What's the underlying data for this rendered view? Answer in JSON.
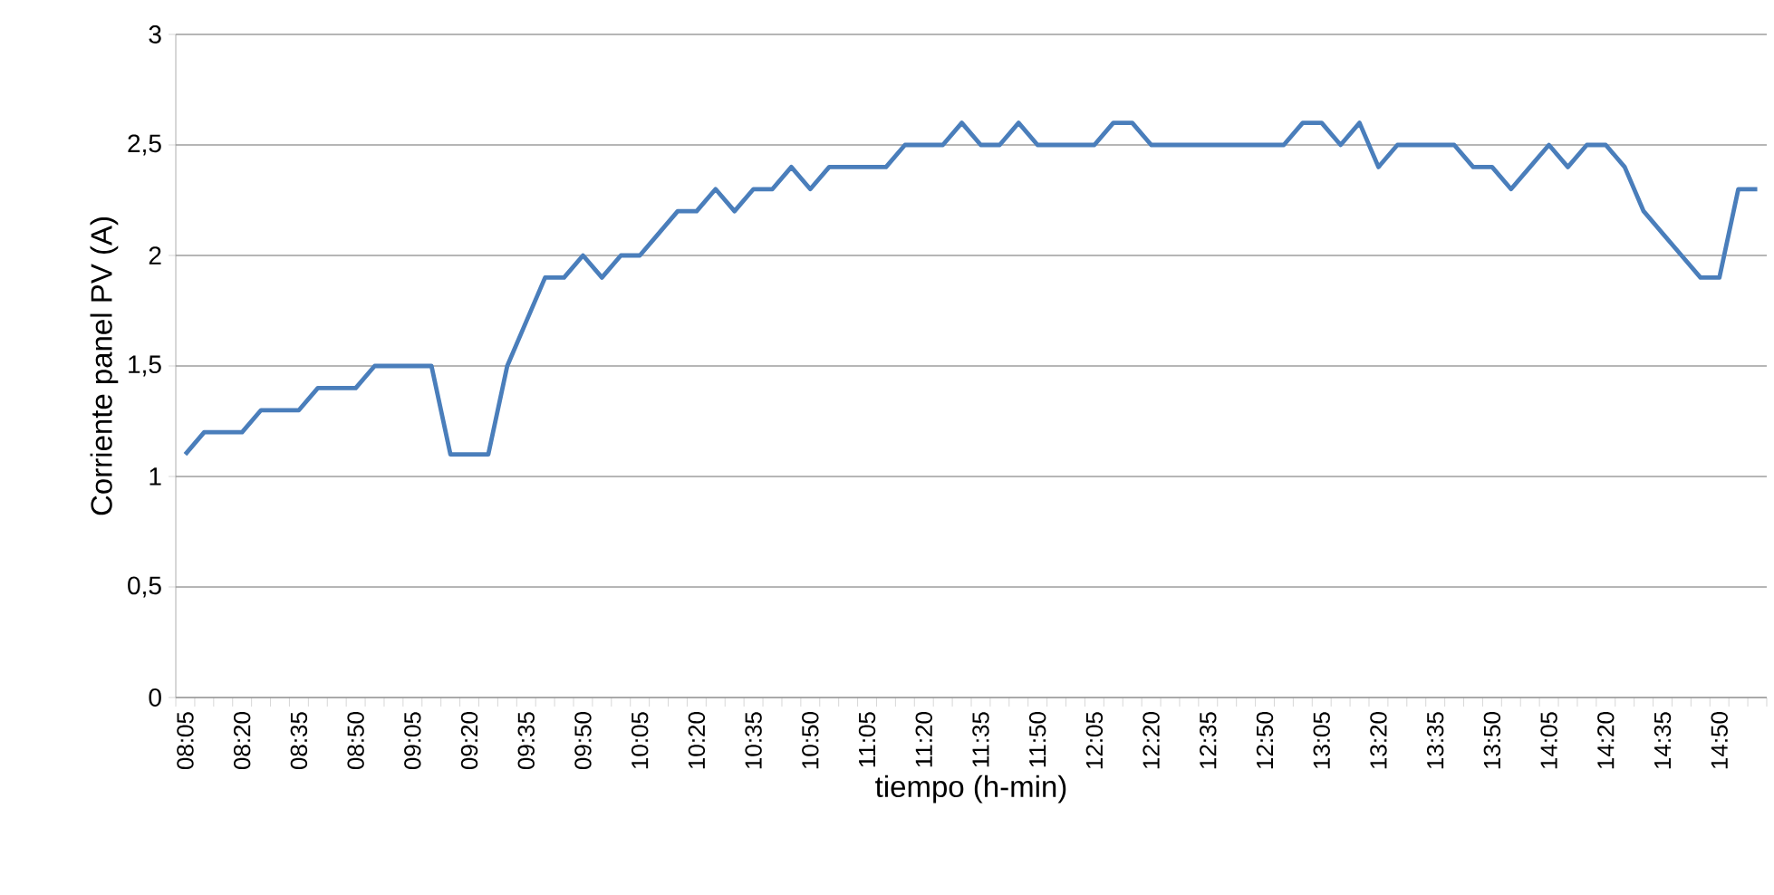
{
  "chart_data": {
    "type": "line",
    "xlabel": "tiempo (h-min)",
    "ylabel": "Corriente panel PV (A)",
    "categories": [
      "08:05",
      null,
      null,
      "08:20",
      null,
      null,
      "08:35",
      null,
      null,
      "08:50",
      null,
      null,
      "09:05",
      null,
      null,
      "09:20",
      null,
      null,
      "09:35",
      null,
      null,
      "09:50",
      null,
      null,
      "10:05",
      null,
      null,
      "10:20",
      null,
      null,
      "10:35",
      null,
      null,
      "10:50",
      null,
      null,
      "11:05",
      null,
      null,
      "11:20",
      null,
      null,
      "11:35",
      null,
      null,
      "11:50",
      null,
      null,
      "12:05",
      null,
      null,
      "12:20",
      null,
      null,
      "12:35",
      null,
      null,
      "12:50",
      null,
      null,
      "13:05",
      null,
      null,
      "13:20",
      null,
      null,
      "13:35",
      null,
      null,
      "13:50",
      null,
      null,
      "14:05",
      null,
      null,
      "14:20",
      null,
      null,
      "14:35",
      null,
      null,
      "14:50",
      null,
      null
    ],
    "series": [
      {
        "color": "#4a7ebb",
        "values": [
          1.1,
          1.2,
          1.2,
          1.2,
          1.3,
          1.3,
          1.3,
          1.4,
          1.4,
          1.4,
          1.5,
          1.5,
          1.5,
          1.5,
          1.1,
          1.1,
          1.1,
          1.5,
          1.7,
          1.9,
          1.9,
          2.0,
          1.9,
          2.0,
          2.0,
          2.1,
          2.2,
          2.2,
          2.3,
          2.2,
          2.3,
          2.3,
          2.4,
          2.3,
          2.4,
          2.4,
          2.4,
          2.4,
          2.5,
          2.5,
          2.5,
          2.6,
          2.5,
          2.5,
          2.6,
          2.5,
          2.5,
          2.5,
          2.5,
          2.6,
          2.6,
          2.5,
          2.5,
          2.5,
          2.5,
          2.5,
          2.5,
          2.5,
          2.5,
          2.6,
          2.6,
          2.5,
          2.6,
          2.4,
          2.5,
          2.5,
          2.5,
          2.5,
          2.4,
          2.4,
          2.3,
          2.4,
          2.5,
          2.4,
          2.5,
          2.5,
          2.4,
          2.2,
          2.1,
          2.0,
          1.9,
          1.9,
          2.3,
          2.3
        ]
      }
    ],
    "ylim": [
      0,
      3
    ],
    "yticks": [
      0,
      {
        "value": 0.5,
        "label": "0,5"
      },
      1,
      {
        "value": 1.5,
        "label": "1,5"
      },
      2,
      {
        "value": 2.5,
        "label": "2,5"
      },
      3
    ],
    "grid": "y",
    "marker": "none",
    "line_style": "solid"
  }
}
